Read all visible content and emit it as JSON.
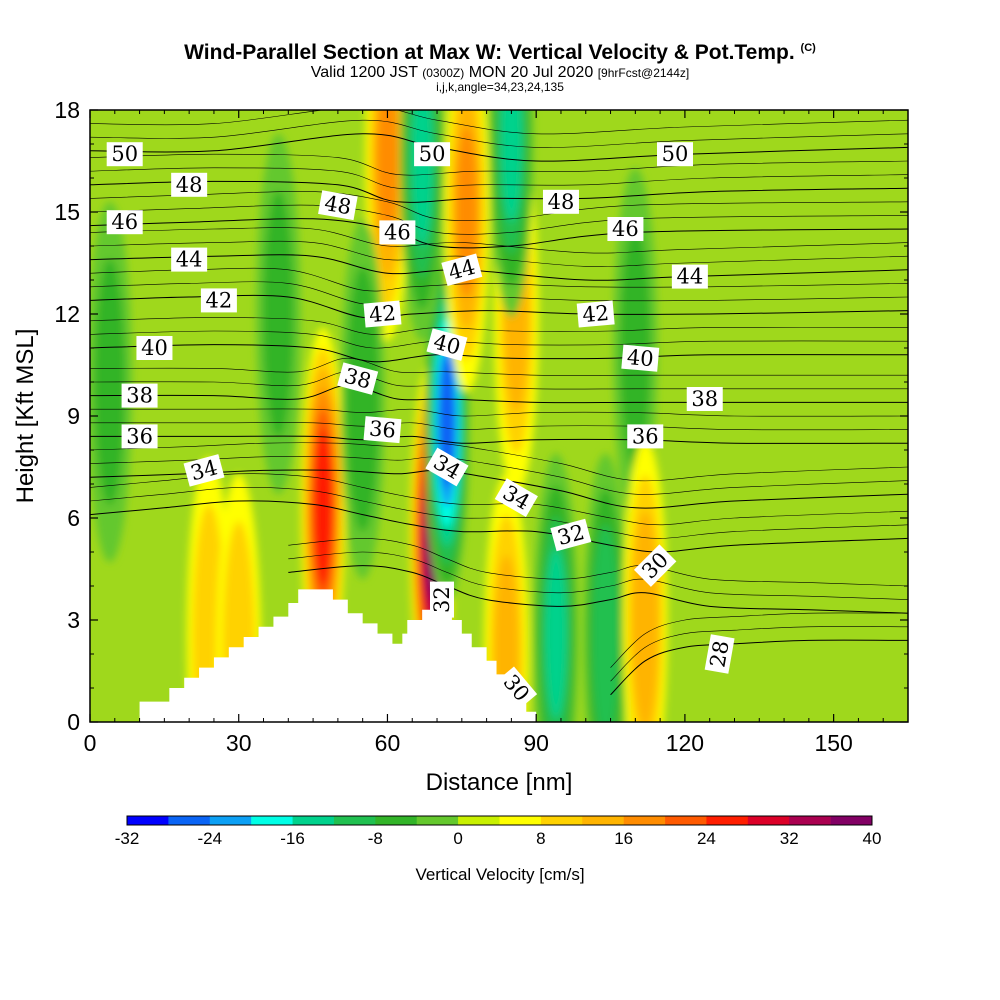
{
  "title": "Wind-Parallel Section at Max W: Vertical Velocity & Pot.Temp.",
  "title_tag": "(C)",
  "subtitle_valid": "Valid 1200 JST",
  "subtitle_utc": "(0300Z)",
  "subtitle_date": "MON 20 Jul 2020",
  "subtitle_fcst": "[9hrFcst@2144z]",
  "subtitle_indices": "i,j,k,angle=34,23,24,135",
  "chart_data": {
    "type": "heatmap",
    "xlabel": "Distance [nm]",
    "ylabel": "Height [Kft MSL]",
    "xlim": [
      0,
      165
    ],
    "ylim": [
      0,
      18
    ],
    "xticks": [
      0,
      30,
      60,
      90,
      120,
      150
    ],
    "yticks": [
      0,
      3,
      6,
      9,
      12,
      15,
      18
    ],
    "colorbar": {
      "label": "Vertical Velocity [cm/s]",
      "min": -32,
      "max": 40,
      "step": 4,
      "tick_values": [
        -32,
        -24,
        -16,
        -8,
        0,
        8,
        16,
        24,
        32,
        40
      ],
      "colors": [
        "#0000ff",
        "#0a64f5",
        "#0ca0f5",
        "#00ffe6",
        "#00d28c",
        "#20c050",
        "#32b428",
        "#64c82d",
        "#c8f000",
        "#ffff00",
        "#ffd200",
        "#ffb400",
        "#ff8c00",
        "#ff5a00",
        "#ff1e00",
        "#dc0028",
        "#aa0050",
        "#820064"
      ]
    },
    "vertical_velocity_features": [
      {
        "x": 47,
        "y": 6.3,
        "value": 26,
        "sign": "updraft"
      },
      {
        "x": 69,
        "y": 5.4,
        "value": 36,
        "sign": "updraft"
      },
      {
        "x": 72,
        "y": 8.8,
        "value": -28,
        "sign": "downdraft"
      },
      {
        "x": 94,
        "y": 2.6,
        "value": -16,
        "sign": "downdraft"
      },
      {
        "x": 104,
        "y": 2.6,
        "value": -14,
        "sign": "downdraft"
      },
      {
        "x": 60,
        "y": 16.5,
        "value": 16,
        "sign": "updraft"
      },
      {
        "x": 76,
        "y": 15.0,
        "value": 16,
        "sign": "updraft"
      },
      {
        "x": 86,
        "y": 12.0,
        "value": 12,
        "sign": "updraft"
      },
      {
        "x": 67,
        "y": 16.5,
        "value": -16,
        "sign": "downdraft"
      },
      {
        "x": 85,
        "y": 17.2,
        "value": -16,
        "sign": "downdraft"
      },
      {
        "x": 110,
        "y": 11.0,
        "value": -8,
        "sign": "downdraft"
      },
      {
        "x": 112,
        "y": 3.0,
        "value": 14,
        "sign": "updraft"
      },
      {
        "x": 55,
        "y": 9.5,
        "value": -10,
        "sign": "downdraft"
      },
      {
        "x": 24,
        "y": 2.5,
        "value": 10,
        "sign": "updraft"
      },
      {
        "x": 30,
        "y": 2.0,
        "value": 10,
        "sign": "updraft"
      },
      {
        "x": 38,
        "y": 12.0,
        "value": -8,
        "sign": "downdraft"
      },
      {
        "x": 4,
        "y": 10.0,
        "value": -8,
        "sign": "downdraft"
      },
      {
        "x": 84,
        "y": 2.0,
        "value": 12,
        "sign": "updraft"
      }
    ],
    "terrain_profile": [
      [
        10,
        0.6
      ],
      [
        16,
        0.6
      ],
      [
        16,
        1.0
      ],
      [
        19,
        1.0
      ],
      [
        19,
        1.3
      ],
      [
        22,
        1.3
      ],
      [
        22,
        1.6
      ],
      [
        25,
        1.6
      ],
      [
        25,
        1.9
      ],
      [
        28,
        1.9
      ],
      [
        28,
        2.2
      ],
      [
        31,
        2.2
      ],
      [
        31,
        2.5
      ],
      [
        34,
        2.5
      ],
      [
        34,
        2.8
      ],
      [
        37,
        2.8
      ],
      [
        37,
        3.1
      ],
      [
        40,
        3.1
      ],
      [
        40,
        3.5
      ],
      [
        42,
        3.5
      ],
      [
        42,
        3.9
      ],
      [
        49,
        3.9
      ],
      [
        49,
        3.6
      ],
      [
        52,
        3.6
      ],
      [
        52,
        3.2
      ],
      [
        55,
        3.2
      ],
      [
        55,
        2.9
      ],
      [
        58,
        2.9
      ],
      [
        58,
        2.6
      ],
      [
        61,
        2.6
      ],
      [
        61,
        2.3
      ],
      [
        63,
        2.3
      ],
      [
        63,
        2.6
      ],
      [
        64,
        2.6
      ],
      [
        64,
        3.0
      ],
      [
        67,
        3.0
      ],
      [
        67,
        3.3
      ],
      [
        69,
        3.3
      ],
      [
        69,
        3.7
      ],
      [
        71,
        3.7
      ],
      [
        71,
        3.4
      ],
      [
        73,
        3.4
      ],
      [
        73,
        3.0
      ],
      [
        75,
        3.0
      ],
      [
        75,
        2.6
      ],
      [
        77,
        2.6
      ],
      [
        77,
        2.2
      ],
      [
        80,
        2.2
      ],
      [
        80,
        1.8
      ],
      [
        82,
        1.8
      ],
      [
        82,
        1.4
      ],
      [
        84,
        1.4
      ],
      [
        84,
        1.0
      ],
      [
        86,
        1.0
      ],
      [
        86,
        0.6
      ],
      [
        88,
        0.6
      ],
      [
        88,
        0.3
      ],
      [
        90,
        0.3
      ],
      [
        90,
        0
      ]
    ],
    "theta_contours": [
      {
        "label": "50",
        "points": [
          [
            0,
            16.8
          ],
          [
            25,
            16.8
          ],
          [
            55,
            17.3
          ],
          [
            70,
            16.9
          ],
          [
            90,
            16.5
          ],
          [
            120,
            16.7
          ],
          [
            165,
            16.9
          ]
        ]
      },
      {
        "label": "48",
        "points": [
          [
            0,
            15.8
          ],
          [
            25,
            15.9
          ],
          [
            50,
            15.8
          ],
          [
            62,
            15.3
          ],
          [
            78,
            15.4
          ],
          [
            100,
            15.4
          ],
          [
            125,
            15.6
          ],
          [
            165,
            15.7
          ]
        ]
      },
      {
        "label": "46",
        "points": [
          [
            0,
            14.6
          ],
          [
            20,
            14.7
          ],
          [
            45,
            14.8
          ],
          [
            60,
            14.5
          ],
          [
            70,
            14.0
          ],
          [
            85,
            14.0
          ],
          [
            110,
            14.4
          ],
          [
            165,
            14.5
          ]
        ]
      },
      {
        "label": "44",
        "points": [
          [
            0,
            13.6
          ],
          [
            25,
            13.7
          ],
          [
            45,
            13.7
          ],
          [
            60,
            13.2
          ],
          [
            75,
            13.3
          ],
          [
            100,
            13.0
          ],
          [
            120,
            13.1
          ],
          [
            165,
            13.3
          ]
        ]
      },
      {
        "label": "42",
        "points": [
          [
            0,
            12.4
          ],
          [
            20,
            12.5
          ],
          [
            40,
            12.5
          ],
          [
            55,
            11.9
          ],
          [
            65,
            12.0
          ],
          [
            80,
            12.1
          ],
          [
            100,
            12.0
          ],
          [
            125,
            12.0
          ],
          [
            165,
            12.1
          ]
        ]
      },
      {
        "label": "40",
        "points": [
          [
            0,
            11.0
          ],
          [
            25,
            11.1
          ],
          [
            45,
            11.0
          ],
          [
            57,
            10.6
          ],
          [
            70,
            10.8
          ],
          [
            85,
            10.7
          ],
          [
            105,
            10.7
          ],
          [
            125,
            10.8
          ],
          [
            165,
            10.8
          ]
        ]
      },
      {
        "label": "38",
        "points": [
          [
            0,
            9.6
          ],
          [
            25,
            9.6
          ],
          [
            42,
            9.5
          ],
          [
            52,
            9.9
          ],
          [
            62,
            9.5
          ],
          [
            72,
            9.5
          ],
          [
            90,
            9.4
          ],
          [
            110,
            9.4
          ],
          [
            130,
            9.4
          ],
          [
            165,
            9.4
          ]
        ]
      },
      {
        "label": "36",
        "points": [
          [
            0,
            8.4
          ],
          [
            25,
            8.4
          ],
          [
            45,
            8.4
          ],
          [
            55,
            8.3
          ],
          [
            65,
            8.4
          ],
          [
            75,
            8.2
          ],
          [
            90,
            8.3
          ],
          [
            110,
            8.3
          ],
          [
            130,
            8.2
          ],
          [
            165,
            8.2
          ]
        ]
      },
      {
        "label": "34",
        "points": [
          [
            0,
            7.2
          ],
          [
            20,
            7.3
          ],
          [
            35,
            7.4
          ],
          [
            50,
            7.4
          ],
          [
            62,
            7.3
          ],
          [
            70,
            7.4
          ],
          [
            80,
            7.2
          ],
          [
            95,
            6.8
          ],
          [
            110,
            6.3
          ],
          [
            130,
            6.5
          ],
          [
            165,
            6.7
          ]
        ]
      },
      {
        "label": "32",
        "points": [
          [
            0,
            6.1
          ],
          [
            15,
            6.3
          ],
          [
            30,
            6.5
          ],
          [
            45,
            6.4
          ],
          [
            55,
            6.1
          ],
          [
            65,
            5.8
          ],
          [
            75,
            5.6
          ],
          [
            90,
            5.6
          ],
          [
            105,
            5.2
          ],
          [
            115,
            5.0
          ],
          [
            130,
            5.2
          ],
          [
            165,
            5.4
          ]
        ]
      },
      {
        "label": "30",
        "points": [
          [
            40,
            4.4
          ],
          [
            55,
            4.6
          ],
          [
            65,
            4.4
          ],
          [
            72,
            4.0
          ],
          [
            80,
            3.6
          ],
          [
            95,
            3.4
          ],
          [
            105,
            3.6
          ],
          [
            112,
            3.8
          ],
          [
            125,
            3.4
          ],
          [
            145,
            3.3
          ],
          [
            165,
            3.2
          ]
        ]
      },
      {
        "label": "28",
        "points": [
          [
            105,
            0.8
          ],
          [
            112,
            1.8
          ],
          [
            120,
            2.2
          ],
          [
            130,
            2.3
          ],
          [
            145,
            2.4
          ],
          [
            165,
            2.4
          ]
        ]
      }
    ],
    "contour_labels": [
      {
        "text": "50",
        "x": 7,
        "y": 16.7,
        "angle": 0
      },
      {
        "text": "48",
        "x": 20,
        "y": 15.8,
        "angle": 0
      },
      {
        "text": "46",
        "x": 7,
        "y": 14.7,
        "angle": 0
      },
      {
        "text": "44",
        "x": 20,
        "y": 13.6,
        "angle": 0
      },
      {
        "text": "42",
        "x": 26,
        "y": 12.4,
        "angle": 0
      },
      {
        "text": "40",
        "x": 13,
        "y": 11.0,
        "angle": 0
      },
      {
        "text": "38",
        "x": 10,
        "y": 9.6,
        "angle": 0
      },
      {
        "text": "36",
        "x": 10,
        "y": 8.4,
        "angle": 0
      },
      {
        "text": "34",
        "x": 23,
        "y": 7.4,
        "angle": -15
      },
      {
        "text": "48",
        "x": 50,
        "y": 15.2,
        "angle": 10
      },
      {
        "text": "46",
        "x": 62,
        "y": 14.4,
        "angle": 0
      },
      {
        "text": "42",
        "x": 59,
        "y": 12.0,
        "angle": -5
      },
      {
        "text": "38",
        "x": 54,
        "y": 10.1,
        "angle": 15
      },
      {
        "text": "36",
        "x": 59,
        "y": 8.6,
        "angle": 5
      },
      {
        "text": "50",
        "x": 69,
        "y": 16.7,
        "angle": 0
      },
      {
        "text": "44",
        "x": 75,
        "y": 13.3,
        "angle": -15
      },
      {
        "text": "40",
        "x": 72,
        "y": 11.1,
        "angle": 15
      },
      {
        "text": "34",
        "x": 72,
        "y": 7.5,
        "angle": 30
      },
      {
        "text": "34",
        "x": 86,
        "y": 6.6,
        "angle": 30
      },
      {
        "text": "32",
        "x": 97,
        "y": 5.5,
        "angle": -15
      },
      {
        "text": "30",
        "x": 114,
        "y": 4.6,
        "angle": -45
      },
      {
        "text": "32",
        "x": 71,
        "y": 3.6,
        "angle": -90
      },
      {
        "text": "30",
        "x": 86,
        "y": 1.0,
        "angle": 50
      },
      {
        "text": "28",
        "x": 127,
        "y": 2.0,
        "angle": -80
      },
      {
        "text": "48",
        "x": 95,
        "y": 15.3,
        "angle": 0
      },
      {
        "text": "46",
        "x": 108,
        "y": 14.5,
        "angle": 0
      },
      {
        "text": "42",
        "x": 102,
        "y": 12.0,
        "angle": -5
      },
      {
        "text": "40",
        "x": 111,
        "y": 10.7,
        "angle": 5
      },
      {
        "text": "36",
        "x": 112,
        "y": 8.4,
        "angle": 0
      },
      {
        "text": "50",
        "x": 118,
        "y": 16.7,
        "angle": 0
      },
      {
        "text": "44",
        "x": 121,
        "y": 13.1,
        "angle": 0
      },
      {
        "text": "38",
        "x": 124,
        "y": 9.5,
        "angle": 0
      }
    ]
  }
}
